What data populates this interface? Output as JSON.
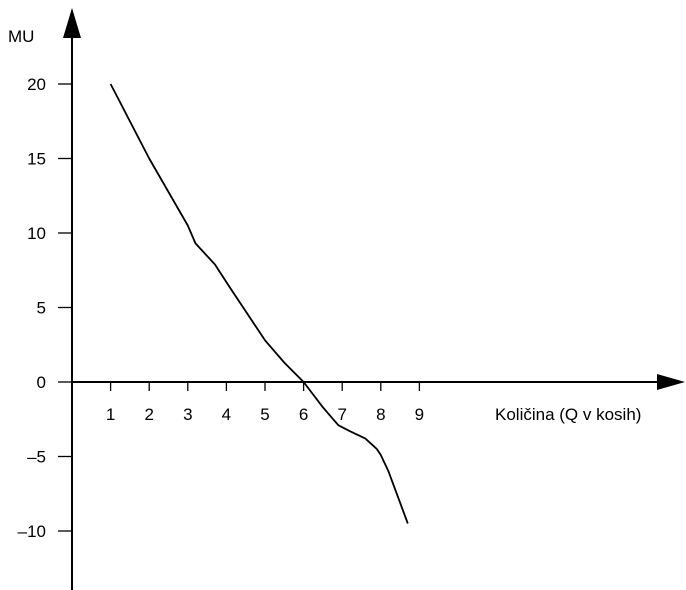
{
  "chart_data": {
    "type": "line",
    "title": "",
    "ylabel": "MU",
    "xlabel": "Količina (Q v kosih)",
    "x_ticks": [
      "1",
      "2",
      "3",
      "4",
      "5",
      "6",
      "7",
      "8",
      "9"
    ],
    "y_ticks": [
      "20",
      "15",
      "10",
      "5",
      "0",
      "–5",
      "–10"
    ],
    "xlim": [
      0,
      15
    ],
    "ylim": [
      -14,
      25
    ],
    "grid": false,
    "legend": "none",
    "series": [
      {
        "color": "#000000",
        "points": [
          {
            "x": 1.0,
            "y": 20.0
          },
          {
            "x": 2.0,
            "y": 15.0
          },
          {
            "x": 3.0,
            "y": 10.5
          },
          {
            "x": 3.2,
            "y": 9.3
          },
          {
            "x": 3.7,
            "y": 7.9
          },
          {
            "x": 4.1,
            "y": 6.3
          },
          {
            "x": 5.0,
            "y": 2.8
          },
          {
            "x": 5.5,
            "y": 1.3
          },
          {
            "x": 6.0,
            "y": 0.0
          },
          {
            "x": 6.5,
            "y": -1.7
          },
          {
            "x": 6.9,
            "y": -2.9
          },
          {
            "x": 7.2,
            "y": -3.3
          },
          {
            "x": 7.6,
            "y": -3.8
          },
          {
            "x": 7.9,
            "y": -4.5
          },
          {
            "x": 8.0,
            "y": -4.9
          },
          {
            "x": 8.2,
            "y": -6.0
          },
          {
            "x": 8.7,
            "y": -9.5
          }
        ]
      }
    ]
  }
}
